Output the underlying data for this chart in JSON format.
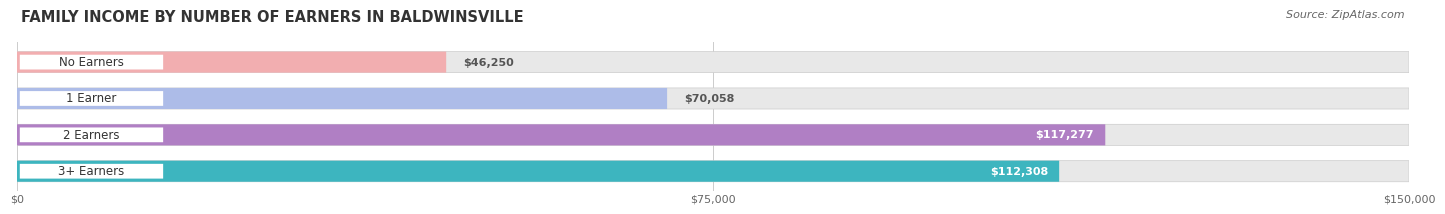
{
  "title": "FAMILY INCOME BY NUMBER OF EARNERS IN BALDWINSVILLE",
  "source": "Source: ZipAtlas.com",
  "categories": [
    "No Earners",
    "1 Earner",
    "2 Earners",
    "3+ Earners"
  ],
  "values": [
    46250,
    70058,
    117277,
    112308
  ],
  "bar_colors": [
    "#f2aeb0",
    "#adbce8",
    "#b07fc4",
    "#3db5bf"
  ],
  "value_labels": [
    "$46,250",
    "$70,058",
    "$117,277",
    "$112,308"
  ],
  "xmax": 150000,
  "xtick_labels": [
    "$0",
    "$75,000",
    "$150,000"
  ],
  "bg_color": "#ffffff",
  "track_color": "#e8e8e8",
  "pill_color": "#ffffff",
  "title_fontsize": 10.5,
  "source_fontsize": 8,
  "label_fontsize": 8.5,
  "value_fontsize": 8
}
